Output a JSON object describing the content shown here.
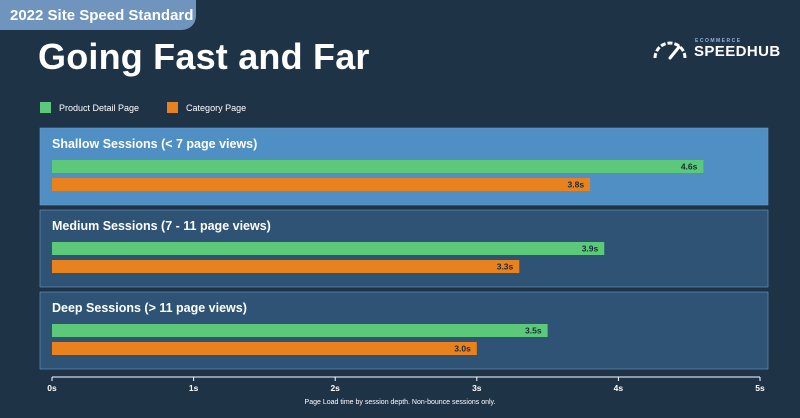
{
  "header": {
    "badge": "2022 Site Speed Standard",
    "title": "Going Fast and Far"
  },
  "logo": {
    "small_text": "ECOMMERCE",
    "big_text": "SPEEDHUB",
    "icon": "speedometer-icon"
  },
  "colors": {
    "background": "#1f3347",
    "series_green": "#5cc97a",
    "series_orange": "#e8821e",
    "group_highlight": "#4f8fc4",
    "group_default": "#2e5374"
  },
  "footnote": "Page Load time by session depth. Non-bounce sessions only.",
  "chart_data": {
    "type": "bar",
    "orientation": "horizontal",
    "categories": [
      "Shallow Sessions (< 7 page views)",
      "Medium Sessions (7 - 11 page views)",
      "Deep Sessions (> 11 page views)"
    ],
    "series": [
      {
        "name": "Product Detail Page",
        "values": [
          4.6,
          3.9,
          3.5
        ],
        "labels": [
          "4.6s",
          "3.9s",
          "3.5s"
        ],
        "color": "#5cc97a"
      },
      {
        "name": "Category Page",
        "values": [
          3.8,
          3.3,
          3.0
        ],
        "labels": [
          "3.8s",
          "3.3s",
          "3.0s"
        ],
        "color": "#e8821e"
      }
    ],
    "xlim": [
      0,
      5
    ],
    "xticks": [
      0,
      1,
      2,
      3,
      4,
      5
    ],
    "xtick_labels": [
      "0s",
      "1s",
      "2s",
      "3s",
      "4s",
      "5s"
    ],
    "legend_position": "top-left",
    "highlighted_category": 0
  }
}
